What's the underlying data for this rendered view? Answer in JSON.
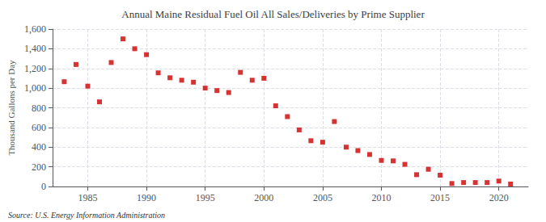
{
  "chart_data": {
    "type": "scatter",
    "title": "Annual Maine Residual Fuel Oil All Sales/Deliveries by Prime Supplier",
    "ylabel": "Thousand Gallons per Day",
    "annotations": [
      "Source: U.S. Energy Information Administration"
    ],
    "x": [
      1983,
      1984,
      1985,
      1986,
      1987,
      1988,
      1989,
      1990,
      1991,
      1992,
      1993,
      1994,
      1995,
      1996,
      1997,
      1998,
      1999,
      2000,
      2001,
      2002,
      2003,
      2004,
      2005,
      2006,
      2007,
      2008,
      2009,
      2010,
      2011,
      2012,
      2013,
      2014,
      2015,
      2016,
      2017,
      2018,
      2019,
      2020,
      2021
    ],
    "values": [
      1065,
      1240,
      1020,
      860,
      1260,
      1500,
      1400,
      1340,
      1155,
      1105,
      1080,
      1060,
      1000,
      975,
      955,
      1160,
      1080,
      1100,
      820,
      710,
      575,
      465,
      450,
      660,
      400,
      365,
      325,
      265,
      260,
      225,
      120,
      175,
      115,
      30,
      40,
      40,
      40,
      55,
      25
    ],
    "color": "#cc0000",
    "marker": "square",
    "xlim": [
      1982,
      2022.5
    ],
    "xticks": [
      1985,
      1990,
      1995,
      2000,
      2005,
      2010,
      2015,
      2020
    ],
    "ylim": [
      0,
      1600
    ],
    "yticks": [
      0,
      200,
      400,
      600,
      800,
      {
        "value": 1000,
        "label": "1,000"
      },
      {
        "value": 1200,
        "label": "1,200"
      },
      {
        "value": 1400,
        "label": "1,400"
      },
      {
        "value": 1600,
        "label": "1,600"
      }
    ],
    "grid": true
  }
}
